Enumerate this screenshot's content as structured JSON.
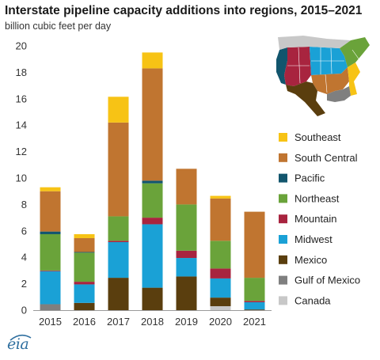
{
  "chart_data": {
    "type": "bar",
    "stacked": true,
    "title": "Interstate pipeline capacity additions into regions, 2015–2021",
    "ylabel": "billion cubic feet per day",
    "xlabel": "",
    "categories": [
      "2015",
      "2016",
      "2017",
      "2018",
      "2019",
      "2020",
      "2021"
    ],
    "ylim": [
      0,
      20
    ],
    "yticks": [
      0,
      2,
      4,
      6,
      8,
      10,
      12,
      14,
      16,
      18,
      20
    ],
    "grid": false,
    "legend_position": "right",
    "series": [
      {
        "name": "Canada",
        "color": "#c8c8c8",
        "values": [
          0.0,
          0.0,
          0.0,
          0.0,
          0.0,
          0.3,
          0.0
        ]
      },
      {
        "name": "Gulf of Mexico",
        "color": "#7f7f7f",
        "values": [
          0.45,
          0.0,
          0.0,
          0.0,
          0.0,
          0.0,
          0.0
        ]
      },
      {
        "name": "Mexico",
        "color": "#5a3e0e",
        "values": [
          0.0,
          0.55,
          2.45,
          1.7,
          2.55,
          0.65,
          0.05
        ]
      },
      {
        "name": "Midwest",
        "color": "#1aa1d6",
        "values": [
          2.5,
          1.4,
          2.7,
          4.8,
          1.4,
          1.45,
          0.55
        ]
      },
      {
        "name": "Mountain",
        "color": "#a8243f",
        "values": [
          0.05,
          0.2,
          0.1,
          0.5,
          0.55,
          0.75,
          0.1
        ]
      },
      {
        "name": "Northeast",
        "color": "#6aa33a",
        "values": [
          2.75,
          2.2,
          1.85,
          2.6,
          3.5,
          2.1,
          1.75
        ]
      },
      {
        "name": "Pacific",
        "color": "#12556d",
        "values": [
          0.2,
          0.05,
          0.0,
          0.2,
          0.0,
          0.0,
          0.0
        ]
      },
      {
        "name": "South Central",
        "color": "#c07530",
        "values": [
          3.05,
          1.05,
          7.1,
          8.5,
          2.7,
          3.2,
          5.0
        ]
      },
      {
        "name": "Southeast",
        "color": "#f7c315",
        "values": [
          0.3,
          0.3,
          1.95,
          1.2,
          0.0,
          0.2,
          0.0
        ]
      }
    ],
    "legend_order": [
      "Southeast",
      "South Central",
      "Pacific",
      "Northeast",
      "Mountain",
      "Midwest",
      "Mexico",
      "Gulf of Mexico",
      "Canada"
    ]
  },
  "brand": {
    "logo_text": "eia",
    "logo_color": "#2f6f9f"
  }
}
